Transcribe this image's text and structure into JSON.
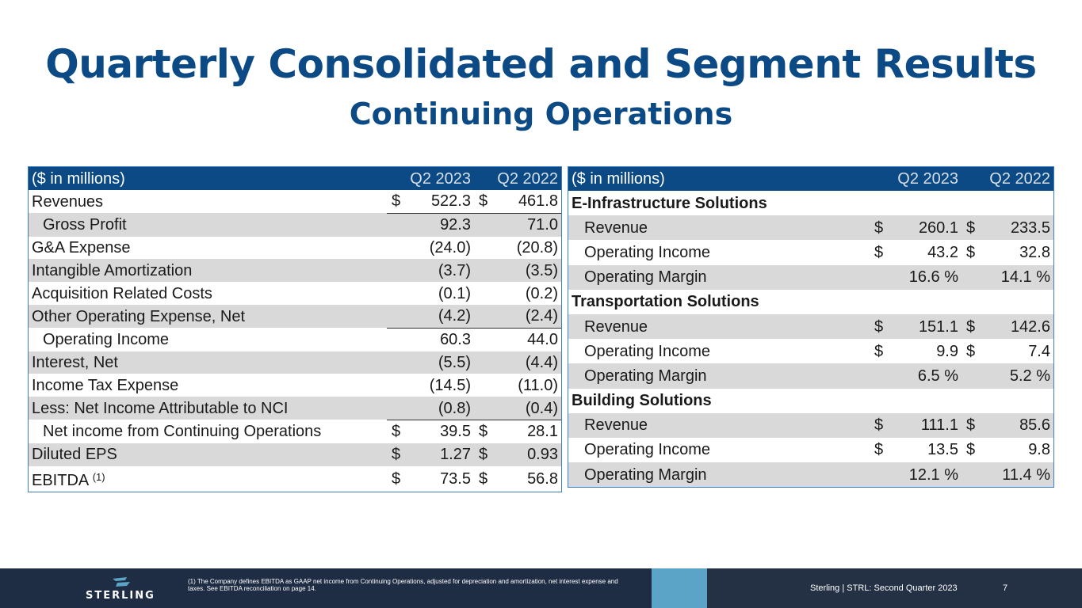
{
  "slide": {
    "title": "Quarterly Consolidated and Segment Results",
    "subtitle": "Continuing Operations"
  },
  "consolidated": {
    "header": {
      "label": "($ in millions)",
      "col1": "Q2 2023",
      "col2": "Q2 2022"
    },
    "rows": [
      {
        "label": "Revenues",
        "d1": "$",
        "v1": "522.3",
        "d2": "$",
        "v2": "461.8"
      },
      {
        "label": "Gross Profit",
        "d1": "",
        "v1": "92.3",
        "d2": "",
        "v2": "71.0"
      },
      {
        "label": "G&A Expense",
        "d1": "",
        "v1": "(24.0)",
        "d2": "",
        "v2": "(20.8)"
      },
      {
        "label": "Intangible Amortization",
        "d1": "",
        "v1": "(3.7)",
        "d2": "",
        "v2": "(3.5)"
      },
      {
        "label": "Acquisition Related Costs",
        "d1": "",
        "v1": "(0.1)",
        "d2": "",
        "v2": "(0.2)"
      },
      {
        "label": "Other Operating Expense, Net",
        "d1": "",
        "v1": "(4.2)",
        "d2": "",
        "v2": "(2.4)"
      },
      {
        "label": "Operating Income",
        "d1": "",
        "v1": "60.3",
        "d2": "",
        "v2": "44.0"
      },
      {
        "label": "Interest, Net",
        "d1": "",
        "v1": "(5.5)",
        "d2": "",
        "v2": "(4.4)"
      },
      {
        "label": "Income Tax Expense",
        "d1": "",
        "v1": "(14.5)",
        "d2": "",
        "v2": "(11.0)"
      },
      {
        "label": "Less: Net Income Attributable to NCI",
        "d1": "",
        "v1": "(0.8)",
        "d2": "",
        "v2": "(0.4)"
      },
      {
        "label": "Net income from Continuing Operations",
        "d1": "$",
        "v1": "39.5",
        "d2": "$",
        "v2": "28.1"
      },
      {
        "label": "Diluted EPS",
        "d1": "$",
        "v1": "1.27",
        "d2": "$",
        "v2": "0.93"
      },
      {
        "label": "EBITDA",
        "note": "(1)",
        "d1": "$",
        "v1": "73.5",
        "d2": "$",
        "v2": "56.8"
      }
    ]
  },
  "segments": {
    "header": {
      "label": "($ in millions)",
      "col1": "Q2 2023",
      "col2": "Q2 2022"
    },
    "groups": [
      {
        "name": "E-Infrastructure Solutions",
        "rows": [
          {
            "label": "Revenue",
            "d1": "$",
            "v1": "260.1",
            "d2": "$",
            "v2": "233.5"
          },
          {
            "label": "Operating Income",
            "d1": "$",
            "v1": "43.2",
            "d2": "$",
            "v2": "32.8"
          },
          {
            "label": "Operating Margin",
            "d1": "",
            "v1": "16.6 %",
            "d2": "",
            "v2": "14.1 %"
          }
        ]
      },
      {
        "name": "Transportation Solutions",
        "rows": [
          {
            "label": "Revenue",
            "d1": "$",
            "v1": "151.1",
            "d2": "$",
            "v2": "142.6"
          },
          {
            "label": "Operating Income",
            "d1": "$",
            "v1": "9.9",
            "d2": "$",
            "v2": "7.4"
          },
          {
            "label": "Operating Margin",
            "d1": "",
            "v1": "6.5 %",
            "d2": "",
            "v2": "5.2 %"
          }
        ]
      },
      {
        "name": "Building Solutions",
        "rows": [
          {
            "label": "Revenue",
            "d1": "$",
            "v1": "111.1",
            "d2": "$",
            "v2": "85.6"
          },
          {
            "label": "Operating Income",
            "d1": "$",
            "v1": "13.5",
            "d2": "$",
            "v2": "9.8"
          },
          {
            "label": "Operating Margin",
            "d1": "",
            "v1": "12.1 %",
            "d2": "",
            "v2": "11.4 %"
          }
        ]
      }
    ]
  },
  "footer": {
    "logo_text": "STERLING",
    "footnote": "(1)  The Company defines EBITDA as GAAP net income from Continuing Operations, adjusted for depreciation and amortization, net interest expense and taxes. See EBITDA reconciliation on page 14.",
    "company_line": "Sterling | STRL:  Second Quarter  2023",
    "page_number": "7",
    "colors": {
      "navy": "#1f2d44",
      "accent": "#5ba4c7",
      "brand_blue": "#0b4a84"
    }
  }
}
